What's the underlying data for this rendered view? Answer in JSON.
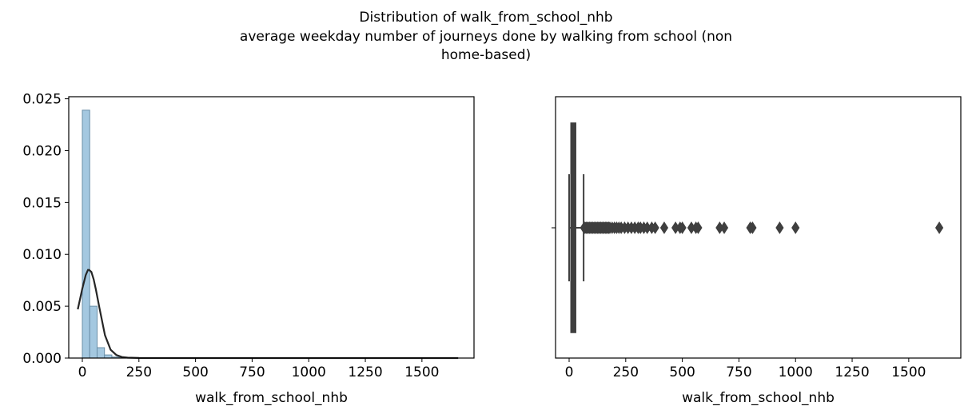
{
  "title_lines": [
    "Distribution of walk_from_school_nhb",
    "average weekday number of journeys done by walking from school (non",
    "home-based)"
  ],
  "colors": {
    "hist_fill": "#a4c8e0",
    "hist_edge": "#6a8fa8",
    "kde": "#262626",
    "box": "#3f3f3f"
  },
  "chart_data": [
    {
      "type": "bar",
      "subtype": "histogram_with_kde",
      "xlabel": "walk_from_school_nhb",
      "ylabel": "",
      "xlim": [
        -60,
        1730
      ],
      "ylim": [
        0,
        0.0252
      ],
      "xticks": [
        0,
        250,
        500,
        750,
        1000,
        1250,
        1500
      ],
      "yticks": [
        0.0,
        0.005,
        0.01,
        0.015,
        0.02,
        0.025
      ],
      "ytick_labels": [
        "0.000",
        "0.005",
        "0.010",
        "0.015",
        "0.020",
        "0.025"
      ],
      "bin_width": 32.6,
      "bins_start": 0,
      "bar_values": [
        0.0239,
        0.005,
        0.001,
        0.0003,
        0.0001,
        3e-05,
        2e-05
      ],
      "kde": {
        "x": [
          -20,
          0,
          15,
          25,
          30,
          40,
          50,
          60,
          75,
          100,
          125,
          150,
          175,
          200,
          250,
          400,
          800,
          1200,
          1660
        ],
        "y": [
          0.0047,
          0.0067,
          0.008,
          0.0085,
          0.0085,
          0.0083,
          0.0076,
          0.0066,
          0.0049,
          0.0022,
          0.0008,
          0.0003,
          0.0001,
          4e-05,
          1e-05,
          0,
          0,
          0,
          0
        ]
      }
    },
    {
      "type": "box",
      "xlabel": "walk_from_school_nhb",
      "xlim": [
        -60,
        1730
      ],
      "xticks": [
        0,
        250,
        500,
        750,
        1000,
        1250,
        1500
      ],
      "box": {
        "q1": 8,
        "median": 18,
        "q3": 29,
        "whisker_low": 0,
        "whisker_high": 64
      },
      "outliers": [
        66,
        70,
        75,
        80,
        85,
        90,
        95,
        100,
        105,
        110,
        115,
        120,
        125,
        130,
        135,
        140,
        145,
        150,
        155,
        160,
        165,
        170,
        175,
        180,
        190,
        200,
        210,
        220,
        230,
        245,
        260,
        275,
        290,
        305,
        315,
        330,
        345,
        365,
        380,
        420,
        470,
        490,
        500,
        540,
        560,
        570,
        665,
        685,
        800,
        810,
        930,
        1000,
        1635
      ]
    }
  ]
}
